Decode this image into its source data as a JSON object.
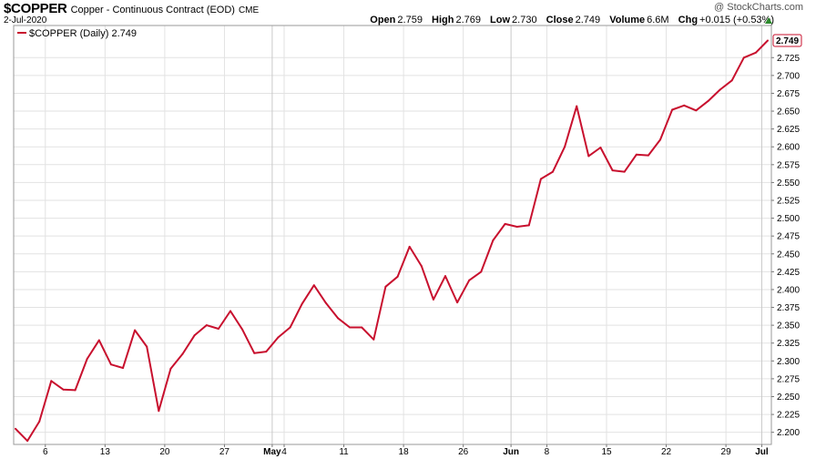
{
  "header": {
    "symbol": "$COPPER",
    "description": "Copper - Continuous Contract (EOD)",
    "exchange": "CME",
    "date": "2-Jul-2020",
    "brand": "@ StockCharts.com",
    "open_label": "Open",
    "open": "2.759",
    "high_label": "High",
    "high": "2.769",
    "low_label": "Low",
    "low": "2.730",
    "close_label": "Close",
    "close": "2.749",
    "volume_label": "Volume",
    "volume": "6.6M",
    "chg_label": "Chg",
    "chg": "+0.015 (+0.53%)"
  },
  "legend": {
    "label": "$COPPER (Daily) 2.749"
  },
  "last_price": "2.749",
  "colors": {
    "line": "#c8102e",
    "grid": "#e2e2e2",
    "up": "#2e8b2e"
  },
  "chart_data": {
    "type": "line",
    "ylim": [
      2.183,
      2.77
    ],
    "y_ticks": [
      "2.200",
      "2.225",
      "2.250",
      "2.275",
      "2.300",
      "2.325",
      "2.350",
      "2.375",
      "2.400",
      "2.425",
      "2.450",
      "2.475",
      "2.500",
      "2.525",
      "2.550",
      "2.575",
      "2.600",
      "2.625",
      "2.650",
      "2.675",
      "2.700",
      "2.725"
    ],
    "x_tick_labels": [
      "6",
      "13",
      "20",
      "27",
      "May",
      "4",
      "11",
      "18",
      "26",
      "Jun",
      "8",
      "15",
      "22",
      "29",
      "Jul"
    ],
    "x_tick_index": [
      2.5,
      7.5,
      12.5,
      17.5,
      21.5,
      22.5,
      27.5,
      32.5,
      37.5,
      41.5,
      44.5,
      49.5,
      54.5,
      59.5,
      62.5
    ],
    "series": [
      {
        "name": "$COPPER (Daily)",
        "values": [
          2.205,
          2.188,
          2.215,
          2.272,
          2.26,
          2.259,
          2.303,
          2.329,
          2.295,
          2.29,
          2.343,
          2.32,
          2.23,
          2.289,
          2.31,
          2.336,
          2.35,
          2.345,
          2.37,
          2.344,
          2.311,
          2.313,
          2.333,
          2.347,
          2.38,
          2.406,
          2.381,
          2.36,
          2.347,
          2.347,
          2.33,
          2.404,
          2.418,
          2.46,
          2.433,
          2.386,
          2.419,
          2.382,
          2.413,
          2.425,
          2.469,
          2.492,
          2.488,
          2.49,
          2.555,
          2.565,
          2.6,
          2.657,
          2.587,
          2.599,
          2.567,
          2.565,
          2.589,
          2.588,
          2.61,
          2.652,
          2.658,
          2.651,
          2.664,
          2.68,
          2.693,
          2.725,
          2.732,
          2.749
        ]
      }
    ]
  }
}
